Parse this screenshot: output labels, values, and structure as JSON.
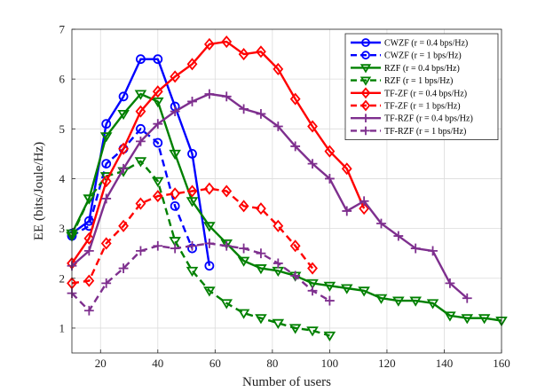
{
  "chart_data": {
    "type": "line",
    "xlabel": "Number of users",
    "ylabel": "EE (bits/Joule/Hz)",
    "xlim": [
      10,
      160
    ],
    "ylim": [
      0.5,
      7
    ],
    "xticks": [
      20,
      40,
      60,
      80,
      100,
      120,
      140,
      160
    ],
    "yticks": [
      1,
      2,
      3,
      4,
      5,
      6,
      7
    ],
    "grid": true,
    "legend_position": "top-right",
    "series": [
      {
        "name": "CWZF (r = 0.4 bps/Hz)",
        "color": "#0000ff",
        "marker": "circle",
        "dash": "solid",
        "x": [
          10,
          16,
          22,
          28,
          34,
          40,
          46,
          52,
          58
        ],
        "y": [
          2.9,
          3.15,
          5.1,
          5.65,
          6.4,
          6.4,
          5.45,
          4.5,
          2.25
        ]
      },
      {
        "name": "CWZF (r = 1 bps/Hz)",
        "color": "#0000ff",
        "marker": "circle",
        "dash": "dashed",
        "x": [
          10,
          16,
          22,
          28,
          34,
          40,
          46,
          52
        ],
        "y": [
          2.85,
          3.05,
          4.3,
          4.6,
          5.0,
          4.72,
          3.45,
          2.6
        ]
      },
      {
        "name": "RZF (r = 0.4 bps/Hz)",
        "color": "#008000",
        "marker": "triangle-down",
        "dash": "solid",
        "x": [
          10,
          16,
          22,
          28,
          34,
          40,
          46,
          52,
          58,
          64,
          70,
          76,
          82,
          88,
          94,
          100,
          106,
          112,
          118,
          124,
          130,
          136,
          142,
          148,
          154,
          160
        ],
        "y": [
          2.9,
          3.6,
          4.85,
          5.3,
          5.7,
          5.55,
          4.5,
          3.55,
          3.05,
          2.7,
          2.35,
          2.2,
          2.15,
          2.05,
          1.9,
          1.85,
          1.8,
          1.75,
          1.6,
          1.55,
          1.55,
          1.5,
          1.25,
          1.2,
          1.2,
          1.15
        ]
      },
      {
        "name": "RZF (r = 1 bps/Hz)",
        "color": "#008000",
        "marker": "triangle-down",
        "dash": "dashed",
        "x": [
          10,
          16,
          22,
          28,
          34,
          40,
          46,
          52,
          58,
          64,
          70,
          76,
          82,
          88,
          94,
          100
        ],
        "y": [
          2.85,
          3.6,
          4.05,
          4.15,
          4.35,
          3.95,
          2.75,
          2.15,
          1.75,
          1.5,
          1.3,
          1.2,
          1.1,
          1.0,
          0.95,
          0.85
        ]
      },
      {
        "name": "TF-ZF (r = 0.4 bps/Hz)",
        "color": "#ff0000",
        "marker": "diamond",
        "dash": "solid",
        "x": [
          10,
          16,
          22,
          28,
          34,
          40,
          46,
          52,
          58,
          64,
          70,
          76,
          82,
          88,
          94,
          100,
          106,
          112
        ],
        "y": [
          2.3,
          2.8,
          3.95,
          4.6,
          5.35,
          5.75,
          6.05,
          6.3,
          6.7,
          6.75,
          6.5,
          6.55,
          6.2,
          5.6,
          5.05,
          4.55,
          4.2,
          3.4
        ]
      },
      {
        "name": "TF-ZF (r = 1 bps/Hz)",
        "color": "#ff0000",
        "marker": "diamond",
        "dash": "dashed",
        "x": [
          10,
          16,
          22,
          28,
          34,
          40,
          46,
          52,
          58,
          64,
          70,
          76,
          82,
          88,
          94
        ],
        "y": [
          1.9,
          1.95,
          2.7,
          3.05,
          3.5,
          3.65,
          3.7,
          3.75,
          3.8,
          3.75,
          3.45,
          3.4,
          3.05,
          2.65,
          2.2
        ]
      },
      {
        "name": "TF-RZF (r = 0.4 bps/Hz)",
        "color": "#7e2f8e",
        "marker": "plus",
        "dash": "solid",
        "x": [
          10,
          16,
          22,
          28,
          34,
          40,
          46,
          52,
          58,
          64,
          70,
          76,
          82,
          88,
          94,
          100,
          106,
          112,
          118,
          124,
          130,
          136,
          142,
          148
        ],
        "y": [
          2.25,
          2.55,
          3.6,
          4.2,
          4.75,
          5.1,
          5.35,
          5.55,
          5.7,
          5.65,
          5.4,
          5.3,
          5.05,
          4.65,
          4.3,
          4.0,
          3.35,
          3.55,
          3.1,
          2.85,
          2.6,
          2.55,
          1.9,
          1.6
        ]
      },
      {
        "name": "TF-RZF (r = 1 bps/Hz)",
        "color": "#7e2f8e",
        "marker": "plus",
        "dash": "dashed",
        "x": [
          10,
          16,
          22,
          28,
          34,
          40,
          46,
          52,
          58,
          64,
          70,
          76,
          82,
          88,
          94,
          100
        ],
        "y": [
          1.7,
          1.35,
          1.9,
          2.2,
          2.55,
          2.65,
          2.6,
          2.65,
          2.7,
          2.65,
          2.6,
          2.5,
          2.3,
          2.05,
          1.75,
          1.55
        ]
      }
    ]
  }
}
